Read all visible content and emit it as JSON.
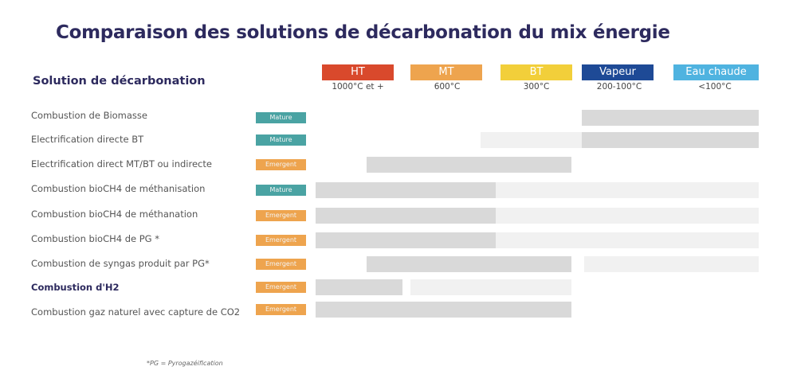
{
  "title": "Comparaison des solutions de décarbonation du mix énergie",
  "subheading": "Solution de décarbonation",
  "footnote": "*PG = Pyrogazéification",
  "colors": {
    "mature": "#4aa3a3",
    "emergent": "#eea44e",
    "dark_bar": "#d9d9d9",
    "light_bar": "#f1f1f1"
  },
  "chart_data": {
    "type": "table",
    "columns": [
      {
        "label": "HT",
        "temp": "1000°C et +",
        "color": "#d9492c"
      },
      {
        "label": "MT",
        "temp": "600°C",
        "color": "#eea44e"
      },
      {
        "label": "BT",
        "temp": "300°C",
        "color": "#f2cf3a"
      },
      {
        "label": "Vapeur",
        "temp": "200-100°C",
        "color": "#1e4a96"
      },
      {
        "label": "Eau chaude",
        "temp": "<100°C",
        "color": "#4fb3e0"
      }
    ],
    "rows": [
      {
        "label": "Combustion de Biomasse",
        "status": "Mature",
        "segments": [
          {
            "from": 3.0,
            "to": 5.0,
            "level": "dark"
          }
        ]
      },
      {
        "label": "Electrification directe BT",
        "status": "Mature",
        "segments": [
          {
            "from": 1.86,
            "to": 3.0,
            "level": "light"
          },
          {
            "from": 3.0,
            "to": 5.0,
            "level": "dark"
          }
        ]
      },
      {
        "label": "Electrification direct MT/BT ou indirecte",
        "status": "Emergent",
        "segments": [
          {
            "from": 0.58,
            "to": 2.89,
            "level": "dark"
          }
        ]
      },
      {
        "label": "Combustion bioCH4 de méthanisation",
        "status": "Mature",
        "segments": [
          {
            "from": 0,
            "to": 2.03,
            "level": "dark"
          },
          {
            "from": 2.03,
            "to": 5.0,
            "level": "light"
          }
        ]
      },
      {
        "label": "Combustion bioCH4 de méthanation",
        "status": "Emergent",
        "segments": [
          {
            "from": 0,
            "to": 2.03,
            "level": "dark"
          },
          {
            "from": 2.03,
            "to": 5.0,
            "level": "light"
          }
        ]
      },
      {
        "label": "Combustion bioCH4 de PG *",
        "status": "Emergent",
        "segments": [
          {
            "from": 0,
            "to": 2.03,
            "level": "dark"
          },
          {
            "from": 2.03,
            "to": 5.0,
            "level": "light"
          }
        ]
      },
      {
        "label": "Combustion de syngas produit par PG*",
        "status": "Emergent",
        "segments": [
          {
            "from": 0.58,
            "to": 2.89,
            "level": "dark"
          },
          {
            "from": 3.03,
            "to": 5.0,
            "level": "light"
          }
        ]
      },
      {
        "label": "Combustion d'H2",
        "status": "Emergent",
        "bold": true,
        "segments": [
          {
            "from": 0,
            "to": 0.98,
            "level": "dark"
          },
          {
            "from": 1.07,
            "to": 2.89,
            "level": "light"
          }
        ]
      },
      {
        "label": "Combustion gaz naturel avec capture de CO2",
        "status": "Emergent",
        "segments": [
          {
            "from": 0,
            "to": 2.89,
            "level": "dark"
          }
        ]
      }
    ]
  }
}
